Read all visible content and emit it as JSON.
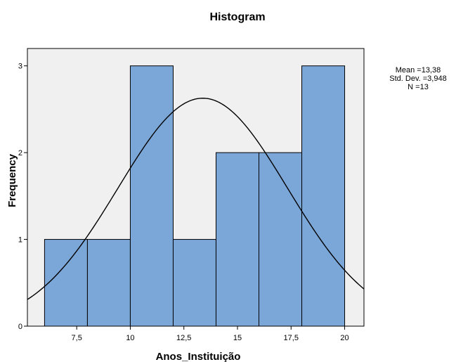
{
  "chart_data": {
    "type": "bar",
    "title": "Histogram",
    "xlabel": "Anos_Instituição",
    "ylabel": "Frequency",
    "bins": [
      {
        "start": 6,
        "end": 8,
        "count": 1
      },
      {
        "start": 8,
        "end": 10,
        "count": 1
      },
      {
        "start": 10,
        "end": 12,
        "count": 3
      },
      {
        "start": 12,
        "end": 14,
        "count": 1
      },
      {
        "start": 14,
        "end": 16,
        "count": 2
      },
      {
        "start": 16,
        "end": 18,
        "count": 2
      },
      {
        "start": 18,
        "end": 20,
        "count": 3
      }
    ],
    "xlim": [
      5.2,
      20.9
    ],
    "ylim": [
      0,
      3.2
    ],
    "x_ticks": [
      7.5,
      10,
      12.5,
      15,
      17.5,
      20
    ],
    "x_tick_labels": [
      "7,5",
      "10",
      "12,5",
      "15",
      "17,5",
      "20"
    ],
    "y_ticks": [
      0,
      1,
      2,
      3
    ],
    "y_tick_labels": [
      "0",
      "1",
      "2",
      "3"
    ],
    "normal_curve": {
      "mean": 13.38,
      "std_dev": 3.948,
      "n": 13,
      "bin_width": 2
    },
    "stats_labels": [
      "Mean =13,38",
      "Std. Dev. =3,948",
      "N =13"
    ],
    "colors": {
      "bar_fill": "#7ba7d8",
      "bar_stroke": "#000000",
      "plot_bg": "#f0f0f0",
      "curve": "#000000"
    }
  }
}
